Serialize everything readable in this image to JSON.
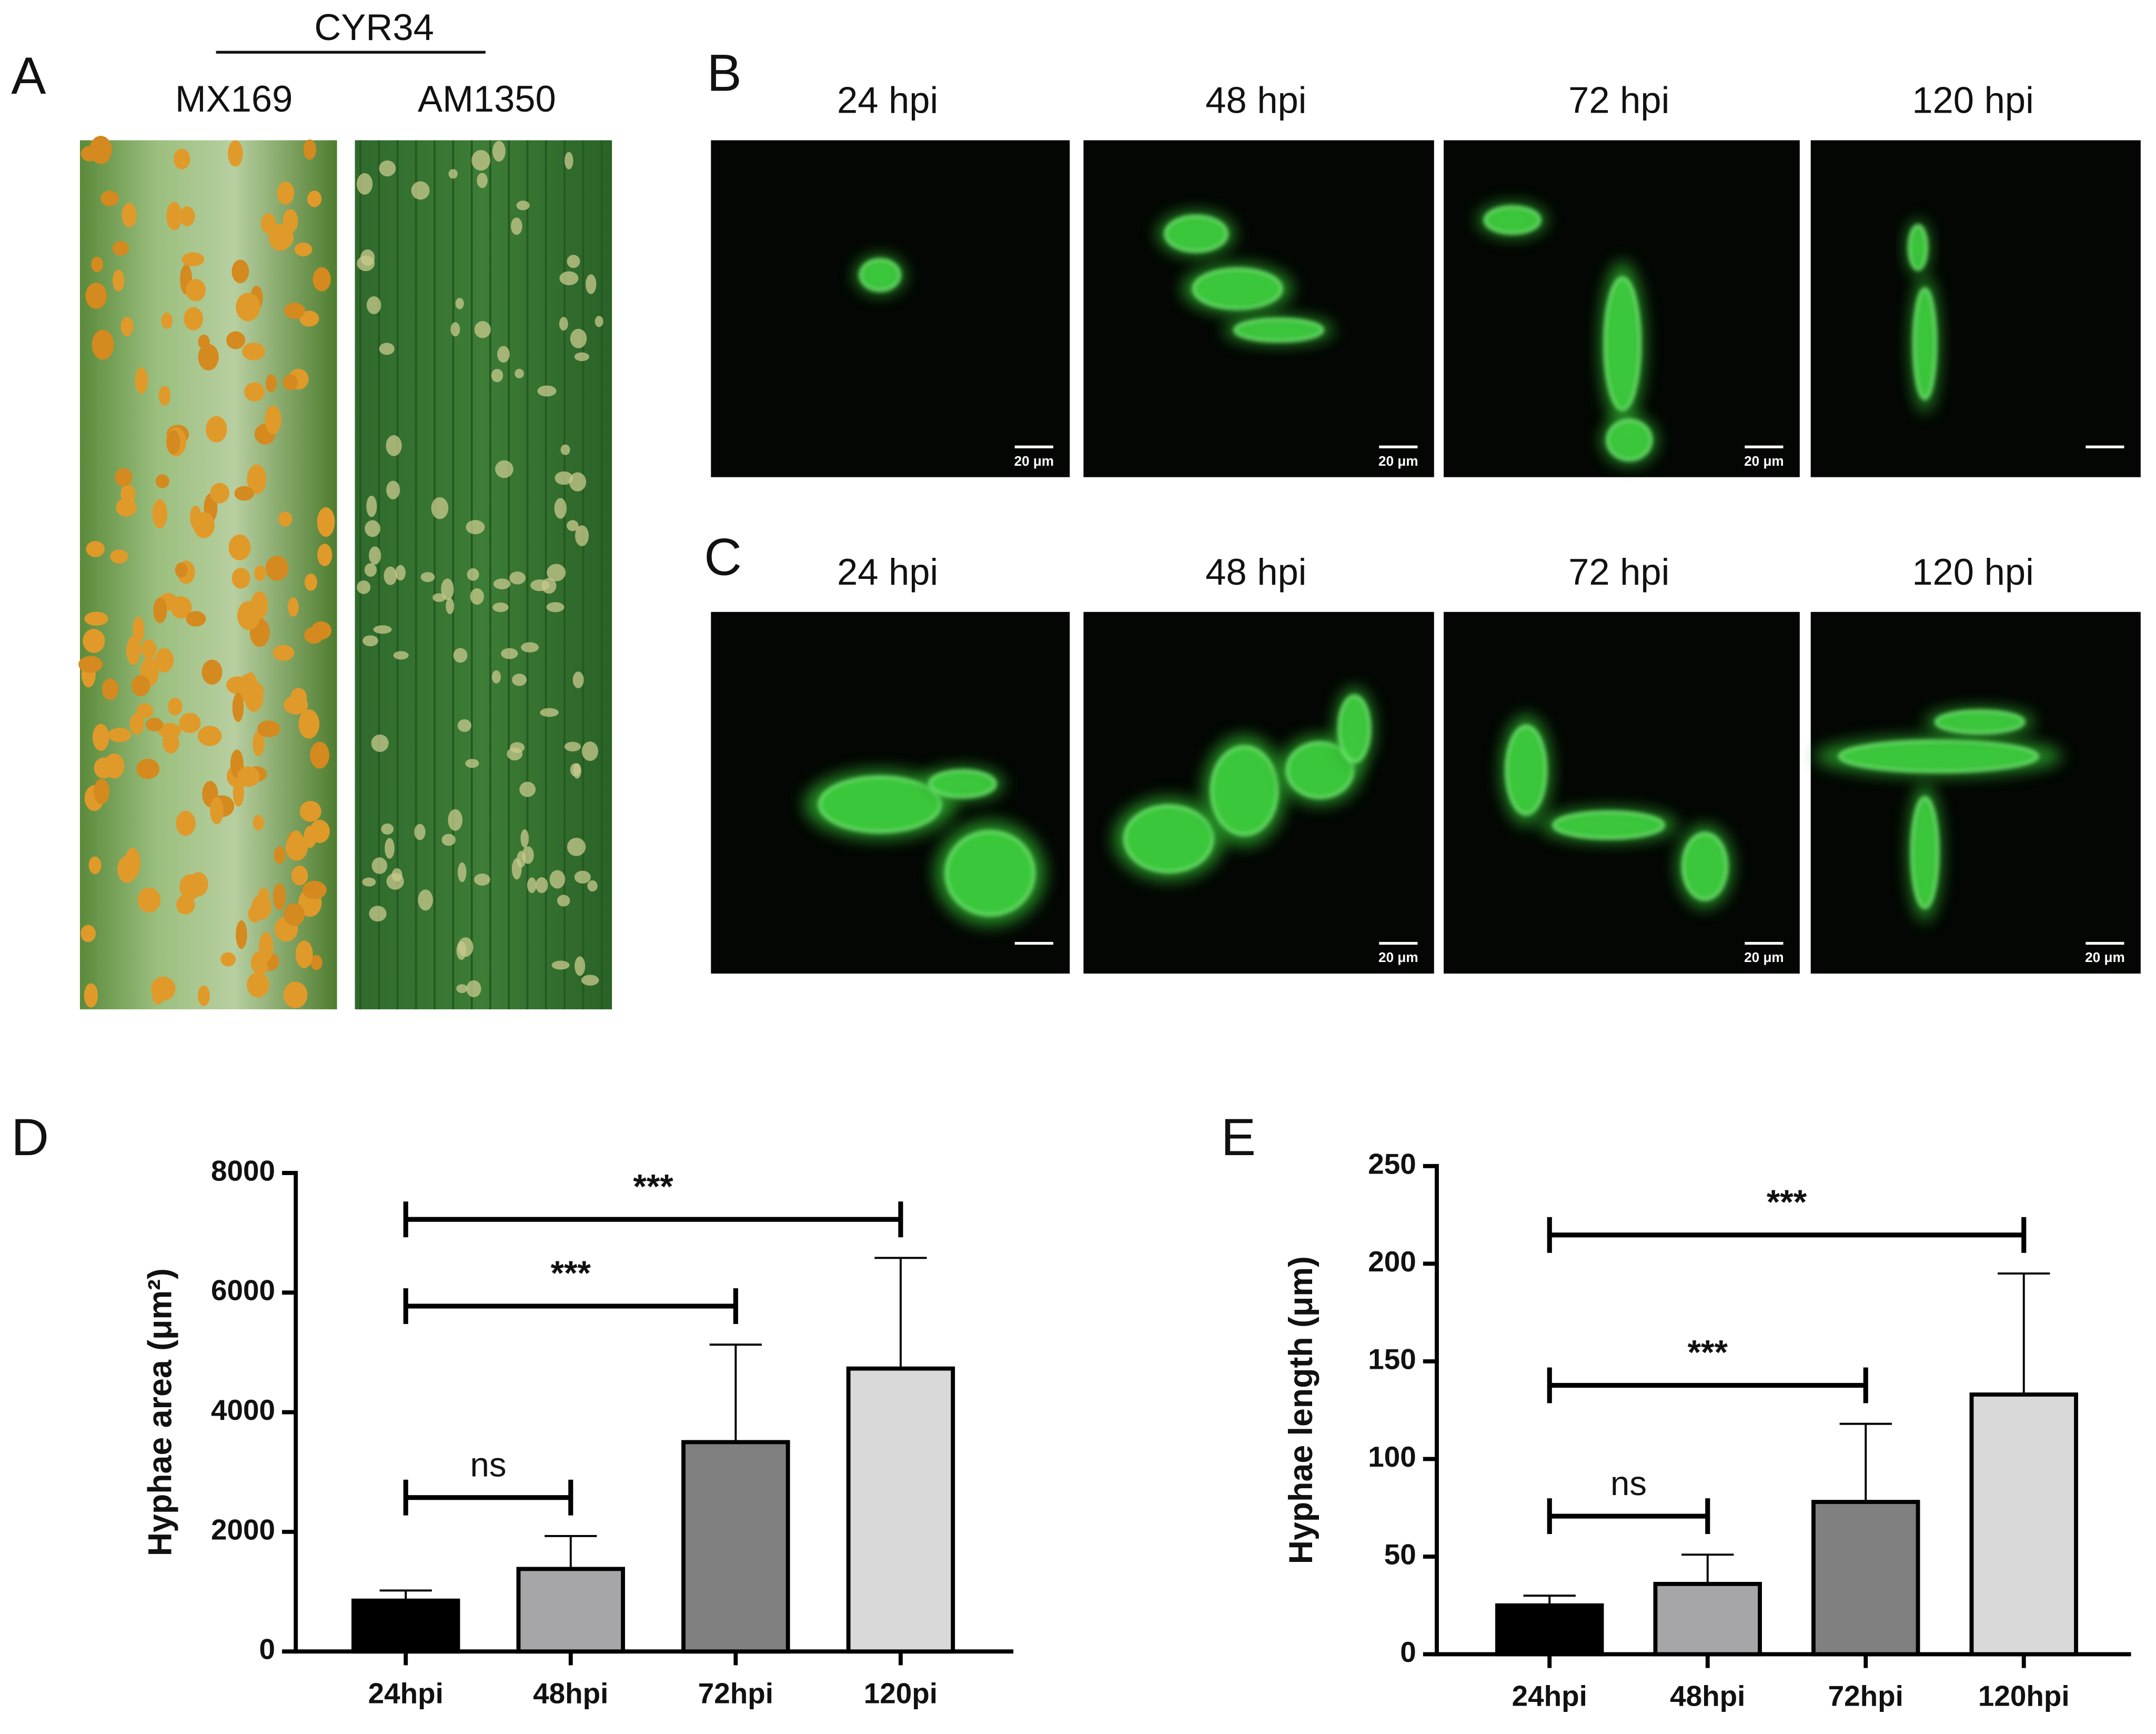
{
  "panel_a": {
    "label": "A",
    "header": "CYR34",
    "cultivars": [
      "MX169",
      "AM1350"
    ]
  },
  "panel_b": {
    "label": "B",
    "times": [
      "24 hpi",
      "48 hpi",
      "72 hpi",
      "120 hpi"
    ],
    "scale_bars": [
      "20 μm",
      "20 μm",
      "20 μm",
      null
    ]
  },
  "panel_c": {
    "label": "C",
    "times": [
      "24 hpi",
      "48 hpi",
      "72 hpi",
      "120 hpi"
    ],
    "scale_bars": [
      null,
      "20 μm",
      "20 μm",
      "20 μm"
    ]
  },
  "chart_labels": [
    "D",
    "E"
  ],
  "chart_data": [
    {
      "type": "bar",
      "y_label": "Hyphae area (μm²)",
      "categories": [
        "24hpi",
        "48hpi",
        "72hpi",
        "120pi"
      ],
      "values": [
        850,
        1380,
        3500,
        4730
      ],
      "errors": [
        170,
        550,
        1630,
        1850
      ],
      "colors": [
        "#000000",
        "#a6a6a8",
        "#808080",
        "#d9d9d9"
      ],
      "ylim": [
        0,
        8000
      ],
      "yticks": [
        0,
        2000,
        4000,
        6000,
        8000
      ],
      "annotations": [
        {
          "label": "ns",
          "from": "24hpi",
          "to": "48hpi"
        },
        {
          "label": "***",
          "from": "24hpi",
          "to": "72hpi"
        },
        {
          "label": "***",
          "from": "24hpi",
          "to": "120pi"
        }
      ]
    },
    {
      "type": "bar",
      "y_label": "Hyphae length (μm)",
      "categories": [
        "24hpi",
        "48hpi",
        "72hpi",
        "120hpi"
      ],
      "values": [
        25,
        36,
        78,
        133
      ],
      "errors": [
        5,
        15,
        40,
        62
      ],
      "colors": [
        "#000000",
        "#a6a6a8",
        "#808080",
        "#d9d9d9"
      ],
      "ylim": [
        0,
        250
      ],
      "yticks": [
        0,
        50,
        100,
        150,
        200,
        250
      ],
      "annotations": [
        {
          "label": "ns",
          "from": "24hpi",
          "to": "48hpi"
        },
        {
          "label": "***",
          "from": "24hpi",
          "to": "72hpi"
        },
        {
          "label": "***",
          "from": "24hpi",
          "to": "120hpi"
        }
      ]
    }
  ]
}
